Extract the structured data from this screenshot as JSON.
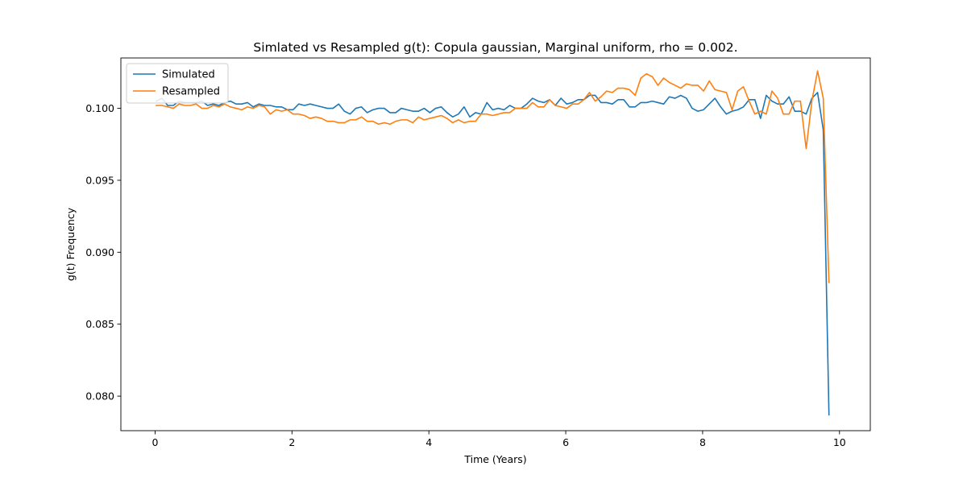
{
  "chart_data": {
    "type": "line",
    "title": "Simlated vs Resampled g(t): Copula gaussian, Marginal uniform, rho =  0.002.",
    "xlabel": "Time (Years)",
    "ylabel": "g(t) Frequency",
    "xlim": [
      -0.5,
      10.45
    ],
    "ylim": [
      0.0776,
      0.1035
    ],
    "xticks": [
      0,
      2,
      4,
      6,
      8,
      10
    ],
    "xtick_labels": [
      "0",
      "2",
      "4",
      "6",
      "8",
      "10"
    ],
    "yticks": [
      0.08,
      0.085,
      0.09,
      0.095,
      0.1
    ],
    "ytick_labels": [
      "0.080",
      "0.085",
      "0.090",
      "0.095",
      "0.100"
    ],
    "grid": false,
    "legend_position": "top-left",
    "x_start": 0.0167,
    "x_step": 0.0833,
    "series": [
      {
        "name": "Simulated",
        "color": "#1f77b4",
        "values": [
          0.1005,
          0.1007,
          0.1002,
          0.1002,
          0.1005,
          0.1004,
          0.1004,
          0.1004,
          0.1005,
          0.1002,
          0.1003,
          0.1002,
          0.1004,
          0.1005,
          0.1003,
          0.1003,
          0.1004,
          0.1001,
          0.1003,
          0.1002,
          0.1002,
          0.1001,
          0.1001,
          0.0999,
          0.0999,
          0.1003,
          0.1002,
          0.1003,
          0.1002,
          0.1001,
          0.1,
          0.1,
          0.1003,
          0.0998,
          0.0996,
          0.1,
          0.1001,
          0.0997,
          0.0999,
          0.1,
          0.1,
          0.0997,
          0.0997,
          0.1,
          0.0999,
          0.0998,
          0.0998,
          0.1,
          0.0997,
          0.1,
          0.1001,
          0.0997,
          0.0994,
          0.0996,
          0.1001,
          0.0994,
          0.0997,
          0.0996,
          0.1004,
          0.0999,
          0.1,
          0.0999,
          0.1002,
          0.1,
          0.1,
          0.1003,
          0.1007,
          0.1005,
          0.1004,
          0.1006,
          0.1002,
          0.1007,
          0.1003,
          0.1004,
          0.1006,
          0.1006,
          0.1009,
          0.1009,
          0.1004,
          0.1004,
          0.1003,
          0.1006,
          0.1006,
          0.1001,
          0.1001,
          0.1004,
          0.1004,
          0.1005,
          0.1004,
          0.1003,
          0.1008,
          0.1007,
          0.1009,
          0.1007,
          0.1,
          0.0998,
          0.0999,
          0.1003,
          0.1007,
          0.1001,
          0.0996,
          0.0998,
          0.0999,
          0.1001,
          0.1006,
          0.1006,
          0.0993,
          0.1009,
          0.1005,
          0.1003,
          0.1003,
          0.1008,
          0.0998,
          0.0998,
          0.0996,
          0.1007,
          0.1011,
          0.0985,
          0.0787
        ]
      },
      {
        "name": "Resampled",
        "color": "#ff7f0e",
        "values": [
          0.1002,
          0.1002,
          0.1001,
          0.1,
          0.1003,
          0.1002,
          0.1002,
          0.1003,
          0.1,
          0.1,
          0.1002,
          0.1001,
          0.1003,
          0.1001,
          0.1,
          0.0999,
          0.1001,
          0.1,
          0.1002,
          0.1001,
          0.0996,
          0.0999,
          0.0998,
          0.0999,
          0.0996,
          0.0996,
          0.0995,
          0.0993,
          0.0994,
          0.0993,
          0.0991,
          0.0991,
          0.099,
          0.099,
          0.0992,
          0.0992,
          0.0994,
          0.0991,
          0.0991,
          0.0989,
          0.099,
          0.0989,
          0.0991,
          0.0992,
          0.0992,
          0.099,
          0.0994,
          0.0992,
          0.0993,
          0.0994,
          0.0995,
          0.0993,
          0.099,
          0.0992,
          0.099,
          0.0991,
          0.0991,
          0.0996,
          0.0996,
          0.0995,
          0.0996,
          0.0997,
          0.0997,
          0.1,
          0.1,
          0.1,
          0.1004,
          0.1001,
          0.1001,
          0.1006,
          0.1002,
          0.1001,
          0.1,
          0.1003,
          0.1003,
          0.1006,
          0.1011,
          0.1005,
          0.1008,
          0.1012,
          0.1011,
          0.1014,
          0.1014,
          0.1013,
          0.1009,
          0.1021,
          0.1024,
          0.1022,
          0.1016,
          0.1021,
          0.1018,
          0.1016,
          0.1014,
          0.1017,
          0.1016,
          0.1016,
          0.1012,
          0.1019,
          0.1013,
          0.1012,
          0.1011,
          0.0999,
          0.1012,
          0.1015,
          0.1005,
          0.0996,
          0.0998,
          0.0996,
          0.1012,
          0.1007,
          0.0996,
          0.0996,
          0.1005,
          0.1005,
          0.0972,
          0.1005,
          0.1026,
          0.1007,
          0.0879
        ]
      }
    ]
  }
}
